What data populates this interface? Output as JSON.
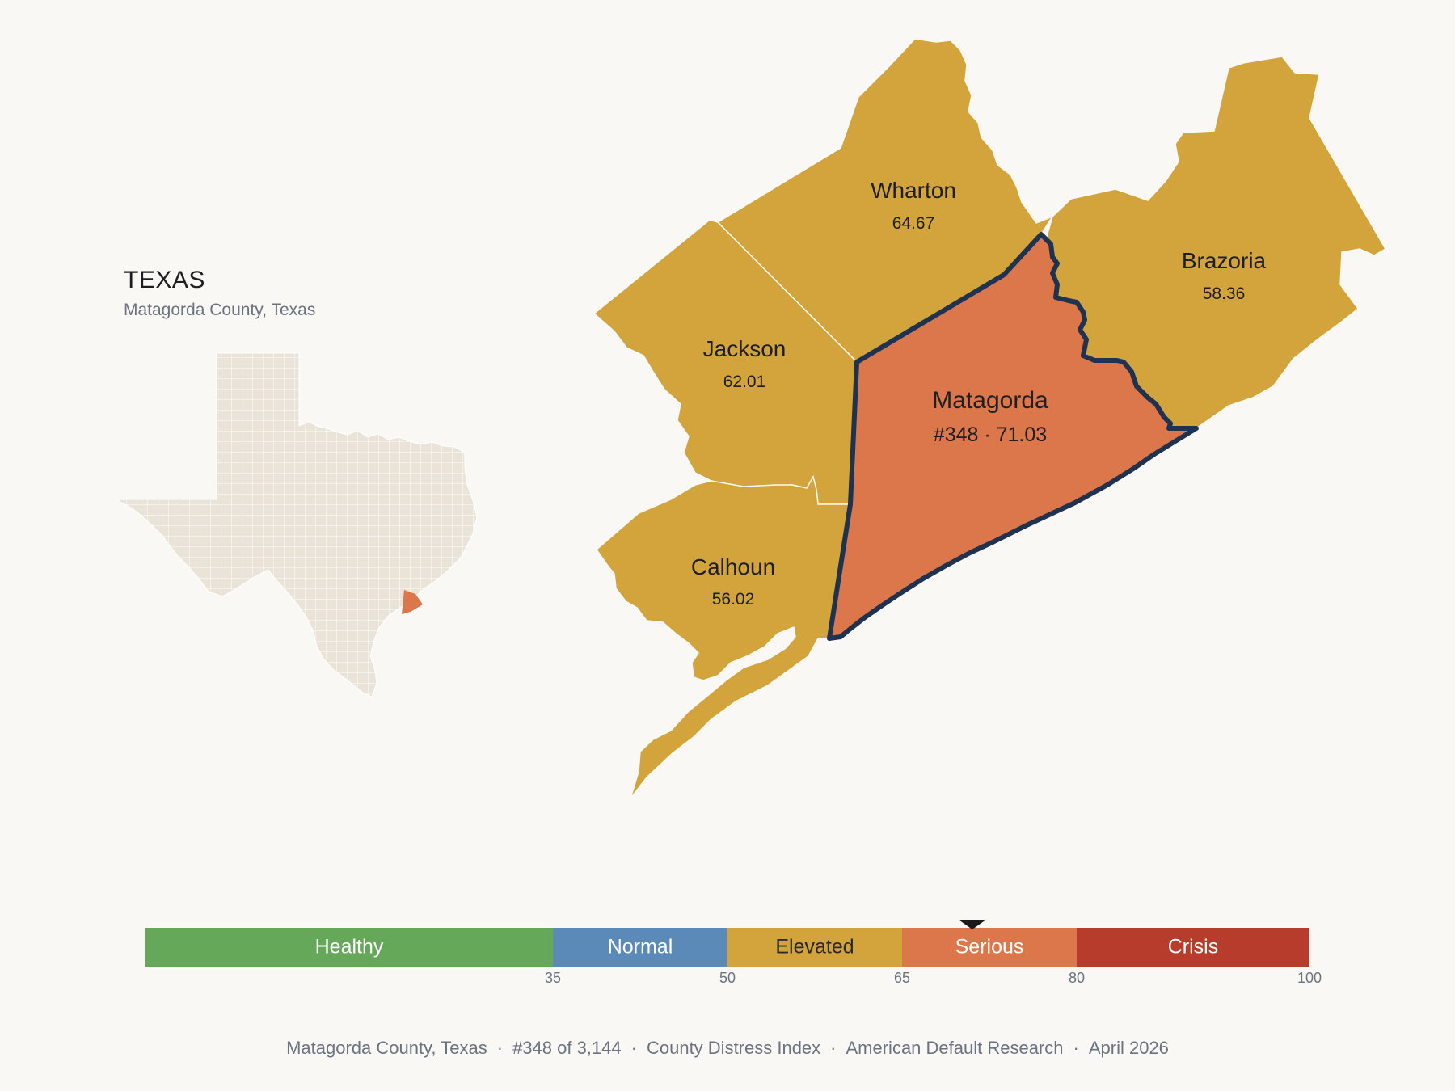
{
  "inset": {
    "title": "TEXAS",
    "subtitle": "Matagorda County, Texas",
    "state_fill": "#e9e3d8",
    "highlight_fill": "#db774b"
  },
  "counties": [
    {
      "id": "wharton",
      "name": "Wharton",
      "score": "64.67",
      "fill": "#d3a43c"
    },
    {
      "id": "brazoria",
      "name": "Brazoria",
      "score": "58.36",
      "fill": "#d3a43c"
    },
    {
      "id": "jackson",
      "name": "Jackson",
      "score": "62.01",
      "fill": "#d3a43c"
    },
    {
      "id": "calhoun",
      "name": "Calhoun",
      "score": "56.02",
      "fill": "#d3a43c"
    },
    {
      "id": "matagorda",
      "name": "Matagorda",
      "score": "#348 · 71.03",
      "fill": "#db774b",
      "outline": "#1e3252",
      "selected": true
    }
  ],
  "legend": {
    "bands": [
      {
        "label": "Healthy",
        "min": 0,
        "max": 35,
        "color": "#66a85a",
        "text": "#ffffff"
      },
      {
        "label": "Normal",
        "min": 35,
        "max": 50,
        "color": "#5b8ab8",
        "text": "#ffffff"
      },
      {
        "label": "Elevated",
        "min": 50,
        "max": 65,
        "color": "#d3a43c",
        "text": "#2a2a2a"
      },
      {
        "label": "Serious",
        "min": 65,
        "max": 80,
        "color": "#db774b",
        "text": "#ffffff"
      },
      {
        "label": "Crisis",
        "min": 80,
        "max": 100,
        "color": "#b83c2c",
        "text": "#ffffff"
      }
    ],
    "ticks": [
      "35",
      "50",
      "65",
      "80",
      "100"
    ],
    "marker_value": 71.03
  },
  "footer": {
    "items": [
      "Matagorda County, Texas",
      "#348 of 3,144",
      "County Distress Index",
      "American Default Research",
      "April 2026"
    ]
  }
}
